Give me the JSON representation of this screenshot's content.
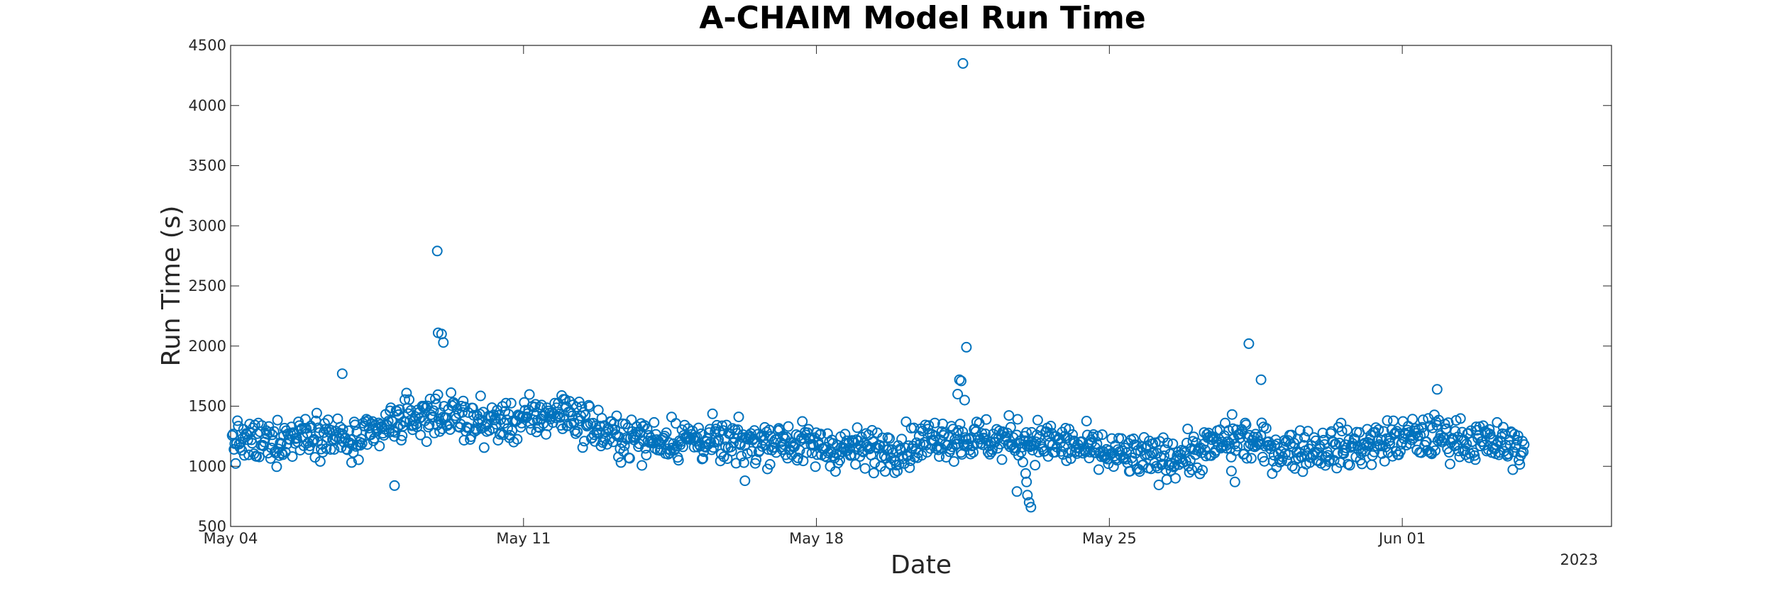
{
  "chart_data": {
    "type": "scatter",
    "title": "A-CHAIM Model Run Time",
    "xlabel": "Date",
    "ylabel": "Run Time (s)",
    "x_year_label": "2023",
    "xlim": [
      "2023-05-04",
      "2023-06-06"
    ],
    "ylim": [
      500,
      4500
    ],
    "yticks": [
      500,
      1000,
      1500,
      2000,
      2500,
      3000,
      3500,
      4000,
      4500
    ],
    "xticks": [
      {
        "date": "2023-05-04",
        "label": "May 04"
      },
      {
        "date": "2023-05-11",
        "label": "May 11"
      },
      {
        "date": "2023-05-18",
        "label": "May 18"
      },
      {
        "date": "2023-05-25",
        "label": "May 25"
      },
      {
        "date": "2023-06-01",
        "label": "Jun 01"
      }
    ],
    "marker": "circle-open",
    "grid": false,
    "color": "#0072BD",
    "outliers": [
      {
        "x": "2023-05-21T12:00",
        "y": 4350
      },
      {
        "x": "2023-05-08T22:30",
        "y": 2790
      },
      {
        "x": "2023-05-08T23:00",
        "y": 2110
      },
      {
        "x": "2023-05-09T01:00",
        "y": 2100
      },
      {
        "x": "2023-05-09T02:00",
        "y": 2030
      },
      {
        "x": "2023-05-21T14:00",
        "y": 1990
      },
      {
        "x": "2023-05-28T08:00",
        "y": 2020
      },
      {
        "x": "2023-05-06T16:00",
        "y": 1770
      },
      {
        "x": "2023-05-21T10:00",
        "y": 1720
      },
      {
        "x": "2023-05-21T11:00",
        "y": 1710
      },
      {
        "x": "2023-05-28T15:00",
        "y": 1720
      },
      {
        "x": "2023-06-01T20:00",
        "y": 1640
      },
      {
        "x": "2023-05-21T09:00",
        "y": 1600
      },
      {
        "x": "2023-05-21T13:00",
        "y": 1550
      },
      {
        "x": "2023-05-23T00:00",
        "y": 940
      },
      {
        "x": "2023-05-23T00:30",
        "y": 870
      },
      {
        "x": "2023-05-23T01:00",
        "y": 760
      },
      {
        "x": "2023-05-23T02:00",
        "y": 700
      },
      {
        "x": "2023-05-23T03:00",
        "y": 660
      },
      {
        "x": "2023-05-22T19:00",
        "y": 790
      },
      {
        "x": "2023-05-07T22:00",
        "y": 840
      },
      {
        "x": "2023-05-16T07:00",
        "y": 880
      },
      {
        "x": "2023-05-27T22:00",
        "y": 960
      },
      {
        "x": "2023-05-28T00:00",
        "y": 870
      }
    ],
    "daily_trend": [
      {
        "x": "2023-05-04",
        "y": 1200
      },
      {
        "x": "2023-05-05",
        "y": 1200
      },
      {
        "x": "2023-05-06",
        "y": 1300
      },
      {
        "x": "2023-05-07",
        "y": 1180
      },
      {
        "x": "2023-05-08",
        "y": 1380
      },
      {
        "x": "2023-05-09",
        "y": 1440
      },
      {
        "x": "2023-05-10",
        "y": 1360
      },
      {
        "x": "2023-05-11",
        "y": 1380
      },
      {
        "x": "2023-05-12",
        "y": 1460
      },
      {
        "x": "2023-05-13",
        "y": 1260
      },
      {
        "x": "2023-05-14",
        "y": 1220
      },
      {
        "x": "2023-05-15",
        "y": 1230
      },
      {
        "x": "2023-05-16",
        "y": 1180
      },
      {
        "x": "2023-05-17",
        "y": 1220
      },
      {
        "x": "2023-05-18",
        "y": 1160
      },
      {
        "x": "2023-05-19",
        "y": 1140
      },
      {
        "x": "2023-05-20",
        "y": 1150
      },
      {
        "x": "2023-05-21",
        "y": 1250
      },
      {
        "x": "2023-05-22",
        "y": 1220
      },
      {
        "x": "2023-05-23",
        "y": 1220
      },
      {
        "x": "2023-05-24",
        "y": 1180
      },
      {
        "x": "2023-05-25",
        "y": 1100
      },
      {
        "x": "2023-05-26",
        "y": 1060
      },
      {
        "x": "2023-05-27",
        "y": 1100
      },
      {
        "x": "2023-05-28",
        "y": 1240
      },
      {
        "x": "2023-05-29",
        "y": 1140
      },
      {
        "x": "2023-05-30",
        "y": 1150
      },
      {
        "x": "2023-05-31",
        "y": 1170
      },
      {
        "x": "2023-06-01",
        "y": 1230
      },
      {
        "x": "2023-06-02",
        "y": 1250
      },
      {
        "x": "2023-06-03",
        "y": 1200
      },
      {
        "x": "2023-06-03T22:00",
        "y": 1150
      }
    ]
  }
}
